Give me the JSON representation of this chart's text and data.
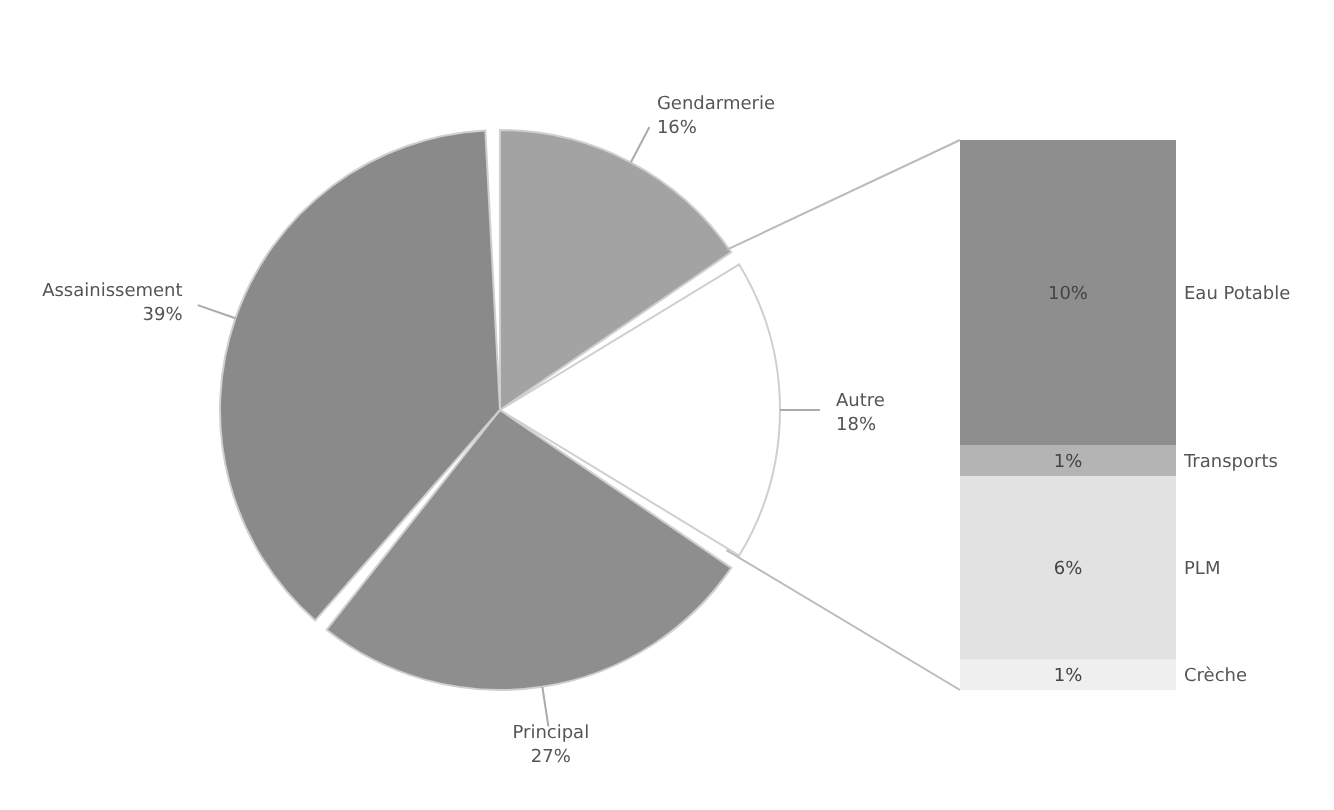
{
  "chart_data": [
    {
      "type": "pie",
      "categories": [
        "Gendarmerie",
        "Autre",
        "Principal",
        "Assainissement"
      ],
      "values": [
        16,
        18,
        27,
        39
      ],
      "value_labels": [
        "16%",
        "18%",
        "27%",
        "39%"
      ],
      "colors": [
        "#a3a3a3",
        "#ffffff",
        "#8e8e8e",
        "#8a8a8a"
      ]
    },
    {
      "type": "bar",
      "stacked": true,
      "categories": [
        null
      ],
      "tick_labels": false,
      "series": [
        {
          "name": "Crèche",
          "color": "#efefef",
          "values": [
            1
          ],
          "value_labels": [
            "1%"
          ]
        },
        {
          "name": "PLM",
          "color": "#e2e2e2",
          "values": [
            6
          ],
          "value_labels": [
            "6%"
          ]
        },
        {
          "name": "Transports",
          "color": "#b4b4b4",
          "values": [
            1
          ],
          "value_labels": [
            "1%"
          ]
        },
        {
          "name": "Eau Potable",
          "color": "#8e8e8e",
          "values": [
            10
          ],
          "value_labels": [
            "10%"
          ]
        }
      ]
    }
  ]
}
